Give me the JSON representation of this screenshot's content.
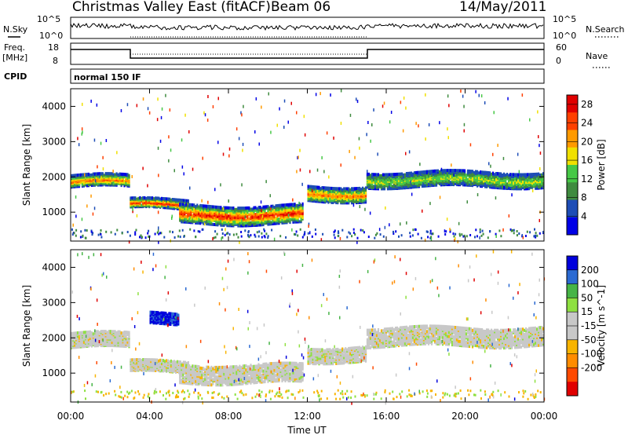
{
  "header": {
    "radar": "Christmas Valley East (fitACF)",
    "beam": "Beam 06",
    "date": "14/May/2011"
  },
  "sky_panel": {
    "left_label": "N.Sky",
    "right_label": "N.Search",
    "top_tick": "10^5",
    "bottom_tick": "10^0"
  },
  "freq_panel": {
    "left_label_1": "Freq.",
    "left_label_2": "[MHz]",
    "right_label": "Nave",
    "left_ticks": [
      "18",
      "8"
    ],
    "right_ticks": [
      "60",
      "0"
    ]
  },
  "cpid": {
    "label": "CPID",
    "text": "normal 150 IF"
  },
  "colors": {
    "power_scale": [
      "#0000e6",
      "#1d4db6",
      "#3f8b3f",
      "#46c846",
      "#f0e000",
      "#ff9a00",
      "#ff4000",
      "#e00000"
    ],
    "velocity_scale": [
      "#0000dc",
      "#2b6ad2",
      "#46b446",
      "#8ee040",
      "#c8c8c8",
      "#c8c8c8",
      "#f8b400",
      "#ff8c00",
      "#ff4a00",
      "#e00000"
    ]
  },
  "chart_data": [
    {
      "type": "heatmap",
      "name": "Power panel",
      "xlabel": "Time UT",
      "ylabel": "Slant Range [km]",
      "x_ticks": [
        "00:00",
        "04:00",
        "08:00",
        "12:00",
        "16:00",
        "20:00",
        "00:00"
      ],
      "xlim": [
        0,
        24
      ],
      "y_ticks": [
        1000,
        2000,
        3000,
        4000
      ],
      "ylim": [
        180,
        4500
      ],
      "colorbar": {
        "title": "Power [dB]",
        "ticks": [
          4,
          8,
          12,
          16,
          20,
          24,
          28
        ],
        "range": [
          0,
          30
        ]
      },
      "echo_bands": [
        {
          "t_start": 0.0,
          "t_end": 3.0,
          "range_center": 1850,
          "range_width": 320,
          "level": "high"
        },
        {
          "t_start": 3.0,
          "t_end": 6.0,
          "range_center": 1200,
          "range_width": 250,
          "level": "very high"
        },
        {
          "t_start": 5.5,
          "t_end": 11.8,
          "range_center": 900,
          "range_width": 500,
          "level": "very high"
        },
        {
          "t_start": 12.0,
          "t_end": 15.0,
          "range_center": 1500,
          "range_width": 400,
          "level": "high"
        },
        {
          "t_start": 15.0,
          "t_end": 24.0,
          "range_center": 1900,
          "range_width": 400,
          "level": "medium"
        }
      ]
    },
    {
      "type": "heatmap",
      "name": "Velocity panel",
      "xlabel": "Time UT",
      "ylabel": "Slant Range [km]",
      "x_ticks": [
        "00:00",
        "04:00",
        "08:00",
        "12:00",
        "16:00",
        "20:00",
        "00:00"
      ],
      "xlim": [
        0,
        24
      ],
      "y_ticks": [
        1000,
        2000,
        3000,
        4000
      ],
      "ylim": [
        180,
        4500
      ],
      "colorbar": {
        "title": "Velocity [m s^-1]",
        "ticks": [
          "200",
          "100",
          "50",
          "15",
          "-15",
          "-50",
          "-100",
          "-200"
        ],
        "range": [
          -250,
          250
        ]
      },
      "echo_bands": [
        {
          "t_start": 0.0,
          "t_end": 3.0,
          "range_center": 1900,
          "range_width": 400,
          "velocity": 0
        },
        {
          "t_start": 3.0,
          "t_end": 6.0,
          "range_center": 1150,
          "range_width": 300,
          "velocity": 0
        },
        {
          "t_start": 4.0,
          "t_end": 5.5,
          "range_center": 2500,
          "range_width": 300,
          "velocity": 200
        },
        {
          "t_start": 5.5,
          "t_end": 11.8,
          "range_center": 950,
          "range_width": 500,
          "velocity": 0
        },
        {
          "t_start": 12.0,
          "t_end": 15.0,
          "range_center": 1500,
          "range_width": 400,
          "velocity": 0
        },
        {
          "t_start": 15.0,
          "t_end": 24.0,
          "range_center": 2000,
          "range_width": 500,
          "velocity": 0
        }
      ]
    }
  ]
}
